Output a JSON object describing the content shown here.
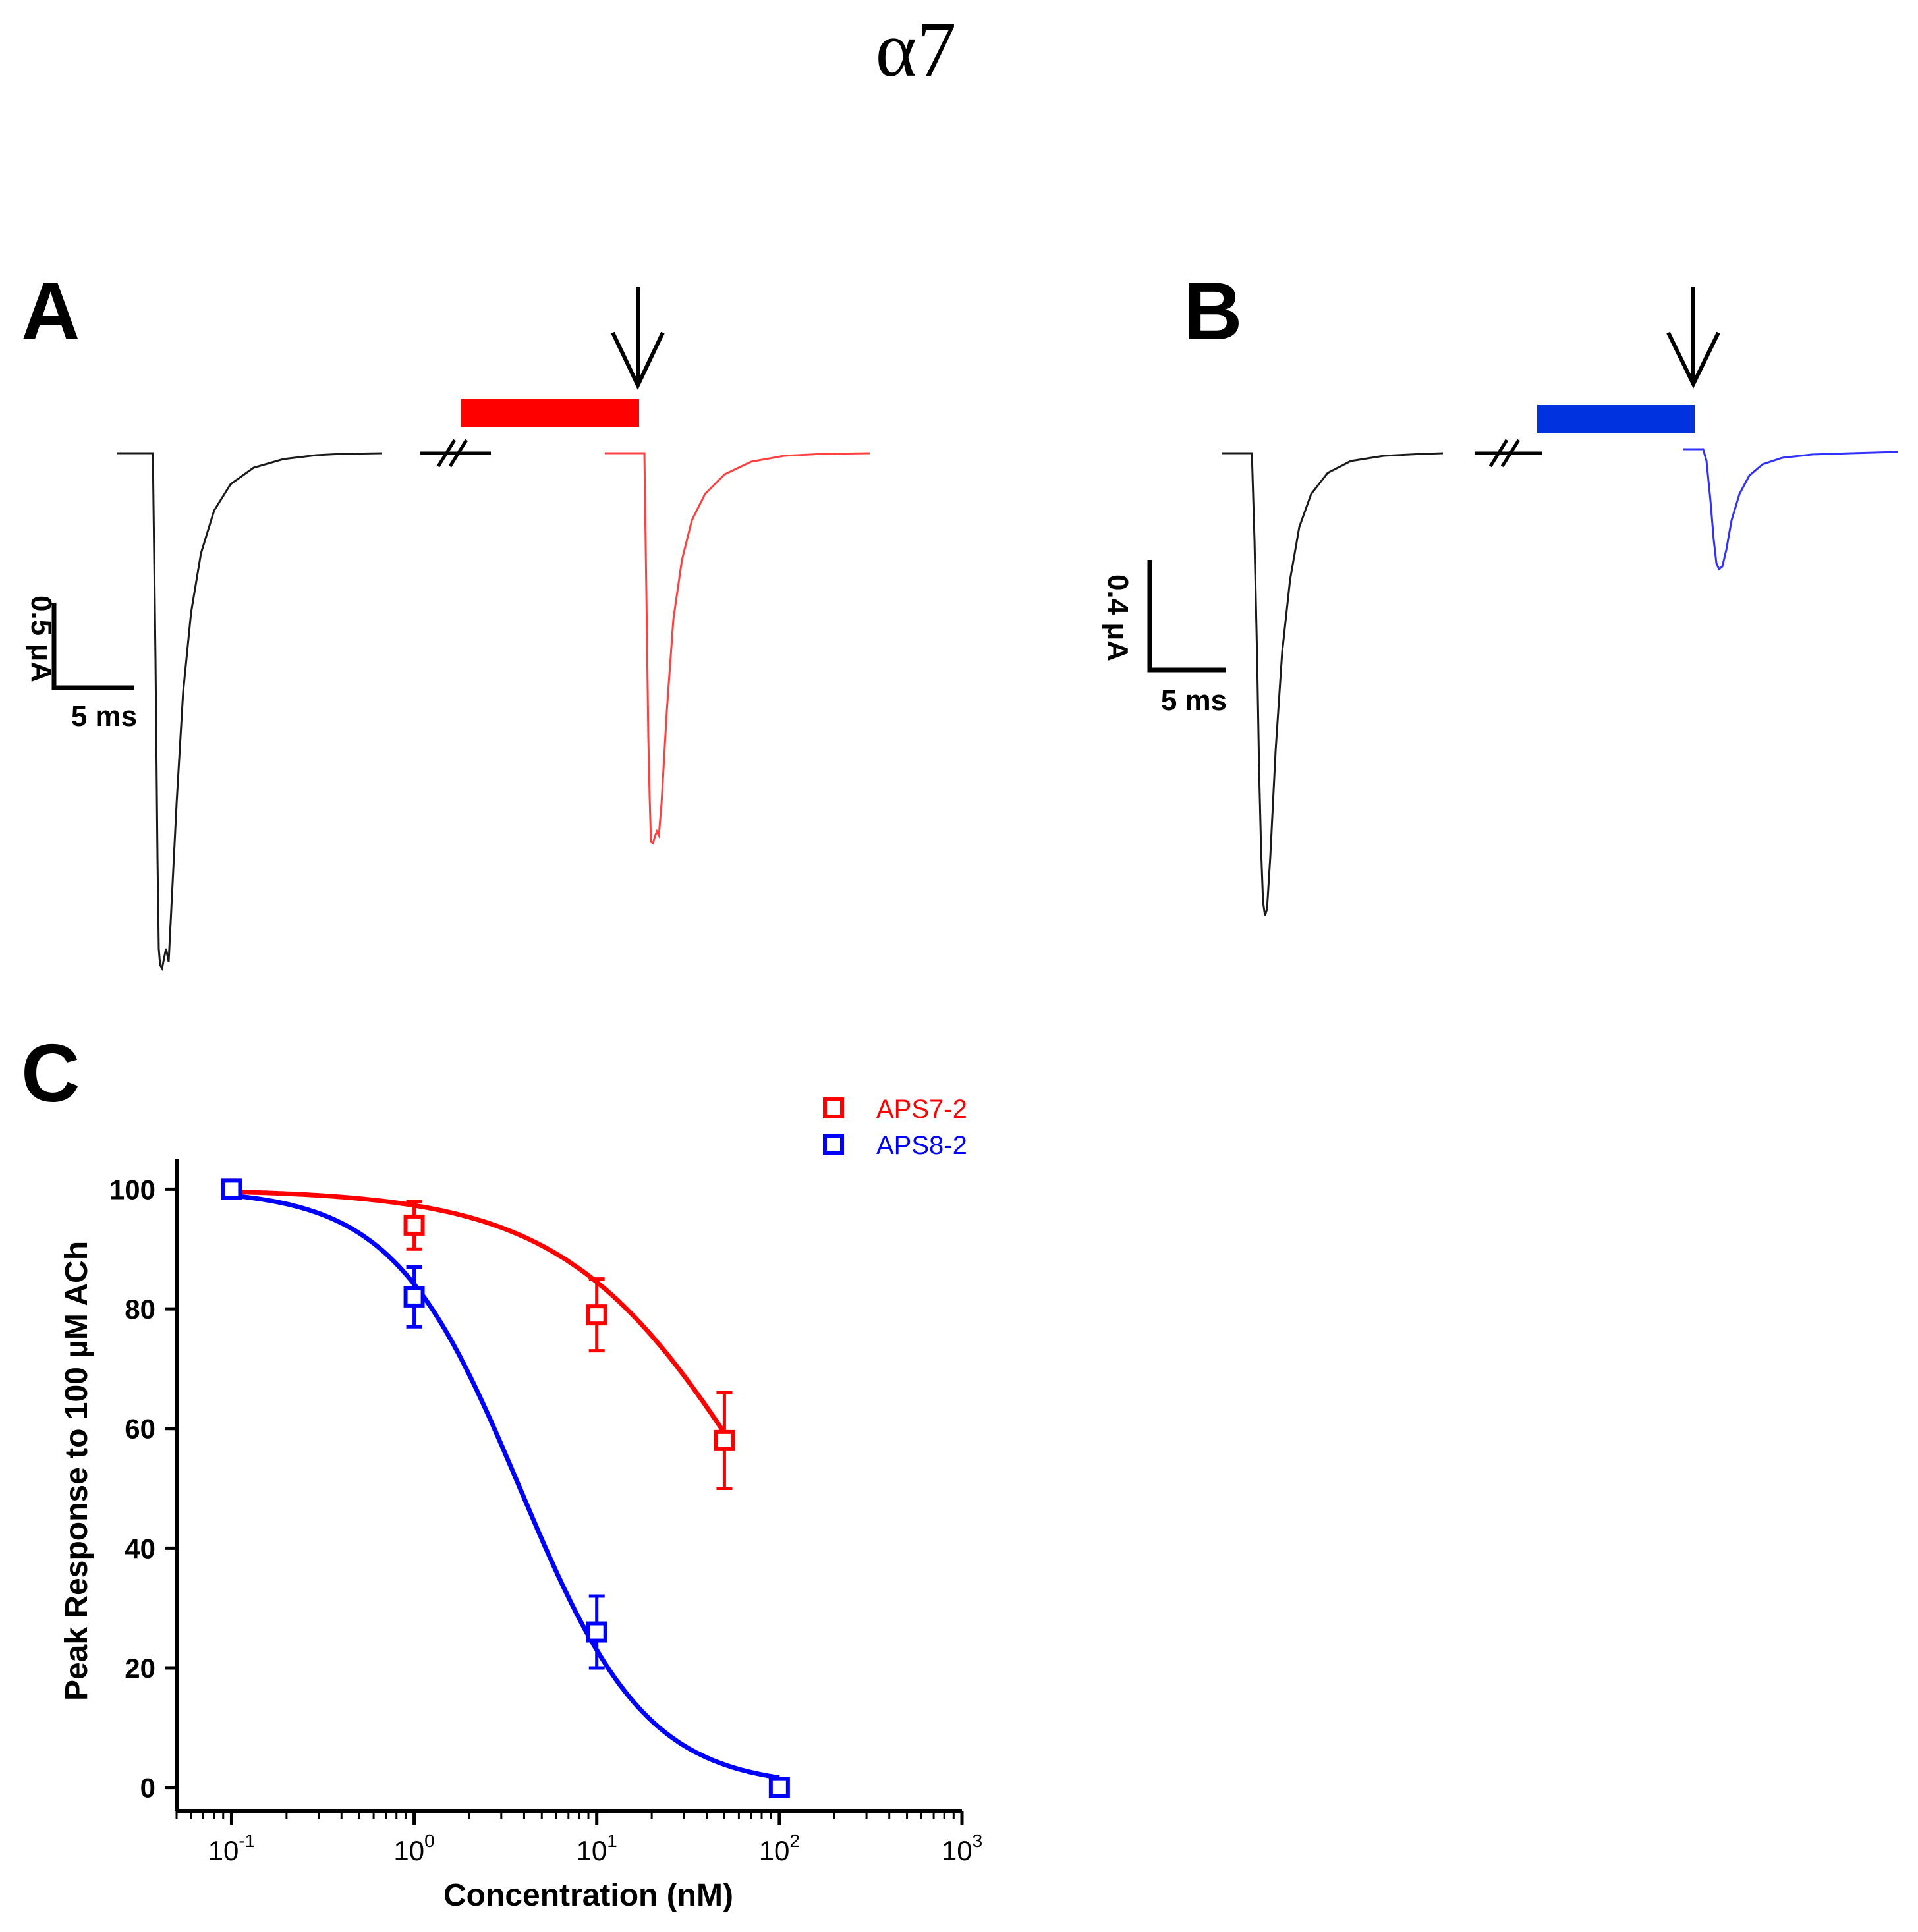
{
  "figure": {
    "title": "α7"
  },
  "panels": {
    "A": {
      "label": "A",
      "scale_y_label": "0.5 μA",
      "scale_x_label": "5 ms",
      "bar_color": "#ff0000",
      "trace_color": "#ff0000",
      "control_trace_color": "#000000",
      "arrow_icon": "down-arrow-icon",
      "break_icon": "axis-break-icon"
    },
    "B": {
      "label": "B",
      "scale_y_label": "0.4 μA",
      "scale_x_label": "5 ms",
      "bar_color": "#0000ff",
      "trace_color": "#0000ff",
      "control_trace_color": "#000000",
      "arrow_icon": "down-arrow-icon",
      "break_icon": "axis-break-icon"
    },
    "C": {
      "label": "C"
    }
  },
  "chart_data": {
    "type": "scatter",
    "xlabel": "Concentration (nM)",
    "ylabel": "Peak Response to 100 µM ACh",
    "xscale": "log",
    "xlim": [
      0.05,
      1000
    ],
    "ylim": [
      -4,
      105
    ],
    "x_ticks": [
      {
        "value": 0.1,
        "base": "10",
        "exp": "-1"
      },
      {
        "value": 1,
        "base": "10",
        "exp": "0"
      },
      {
        "value": 10,
        "base": "10",
        "exp": "1"
      },
      {
        "value": 100,
        "base": "10",
        "exp": "2"
      },
      {
        "value": 1000,
        "base": "10",
        "exp": "3"
      }
    ],
    "y_ticks": [
      "0",
      "20",
      "40",
      "60",
      "80",
      "100"
    ],
    "legend_position": "top-right",
    "grid": false,
    "series": [
      {
        "name": "APS7-2",
        "color": "#ff0000",
        "x": [
          0.1,
          1,
          10,
          50
        ],
        "y": [
          100,
          94,
          79,
          58
        ],
        "err": [
          0,
          4,
          6,
          8
        ],
        "fit": {
          "top": 100,
          "bottom": 0,
          "ic50": 79,
          "hill": 0.82
        }
      },
      {
        "name": "APS8-2",
        "color": "#0000ff",
        "x": [
          0.1,
          1,
          10,
          100
        ],
        "y": [
          100,
          82,
          26,
          0
        ],
        "err": [
          0,
          5,
          6,
          0
        ],
        "fit": {
          "top": 100,
          "bottom": 0,
          "ic50": 3.8,
          "hill": 1.25
        }
      }
    ]
  }
}
